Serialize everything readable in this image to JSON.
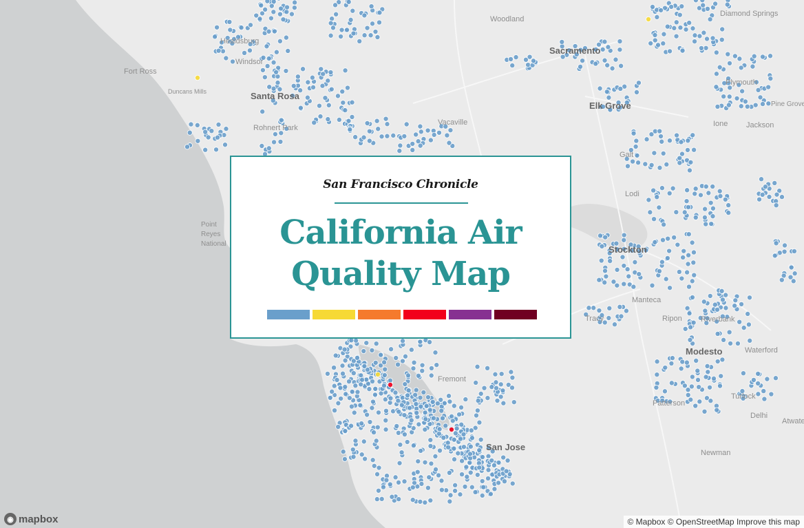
{
  "map": {
    "places": [
      {
        "name": "Woodland",
        "kind": "town"
      },
      {
        "name": "Sacramento",
        "kind": "city"
      },
      {
        "name": "Diamond Springs",
        "kind": "town"
      },
      {
        "name": "Fort Ross",
        "kind": "town"
      },
      {
        "name": "Healdsburg",
        "kind": "town"
      },
      {
        "name": "Windsor",
        "kind": "town"
      },
      {
        "name": "Duncans Mills",
        "kind": "town"
      },
      {
        "name": "Santa Rosa",
        "kind": "city"
      },
      {
        "name": "Rohnert Park",
        "kind": "town"
      },
      {
        "name": "Vacaville",
        "kind": "town"
      },
      {
        "name": "Elk Grove",
        "kind": "city"
      },
      {
        "name": "Plymouth",
        "kind": "town"
      },
      {
        "name": "Pine Grove",
        "kind": "town"
      },
      {
        "name": "Ione",
        "kind": "town"
      },
      {
        "name": "Jackson",
        "kind": "town"
      },
      {
        "name": "Galt",
        "kind": "town"
      },
      {
        "name": "Lodi",
        "kind": "town"
      },
      {
        "name": "Point Reyes National",
        "kind": "town"
      },
      {
        "name": "Stockton",
        "kind": "city"
      },
      {
        "name": "Manteca",
        "kind": "town"
      },
      {
        "name": "Tracy",
        "kind": "town"
      },
      {
        "name": "Ripon",
        "kind": "town"
      },
      {
        "name": "Riverbank",
        "kind": "town"
      },
      {
        "name": "Modesto",
        "kind": "city"
      },
      {
        "name": "Waterford",
        "kind": "town"
      },
      {
        "name": "Turlock",
        "kind": "town"
      },
      {
        "name": "Patterson",
        "kind": "town"
      },
      {
        "name": "Delhi",
        "kind": "town"
      },
      {
        "name": "Atwater",
        "kind": "town"
      },
      {
        "name": "Newman",
        "kind": "town"
      },
      {
        "name": "Fremont",
        "kind": "town"
      },
      {
        "name": "San Jose",
        "kind": "city"
      }
    ]
  },
  "aqi_colors": {
    "good": "#6a9fcb",
    "moderate": "#f6d935",
    "unhealthy_sensitive": "#f57a2d",
    "unhealthy": "#f2001b",
    "very_unhealthy": "#873191",
    "hazardous": "#700022"
  },
  "title_card": {
    "masthead": "San Francisco Chronicle",
    "title_line1": "California Air",
    "title_line2": "Quality Map",
    "legend_swatches": [
      "good",
      "moderate",
      "unhealthy_sensitive",
      "unhealthy",
      "very_unhealthy",
      "hazardous"
    ]
  },
  "footer": {
    "logo_text": "mapbox",
    "attribution_mapbox": "© Mapbox",
    "attribution_osm": "© OpenStreetMap",
    "attribution_improve": "Improve this map"
  }
}
